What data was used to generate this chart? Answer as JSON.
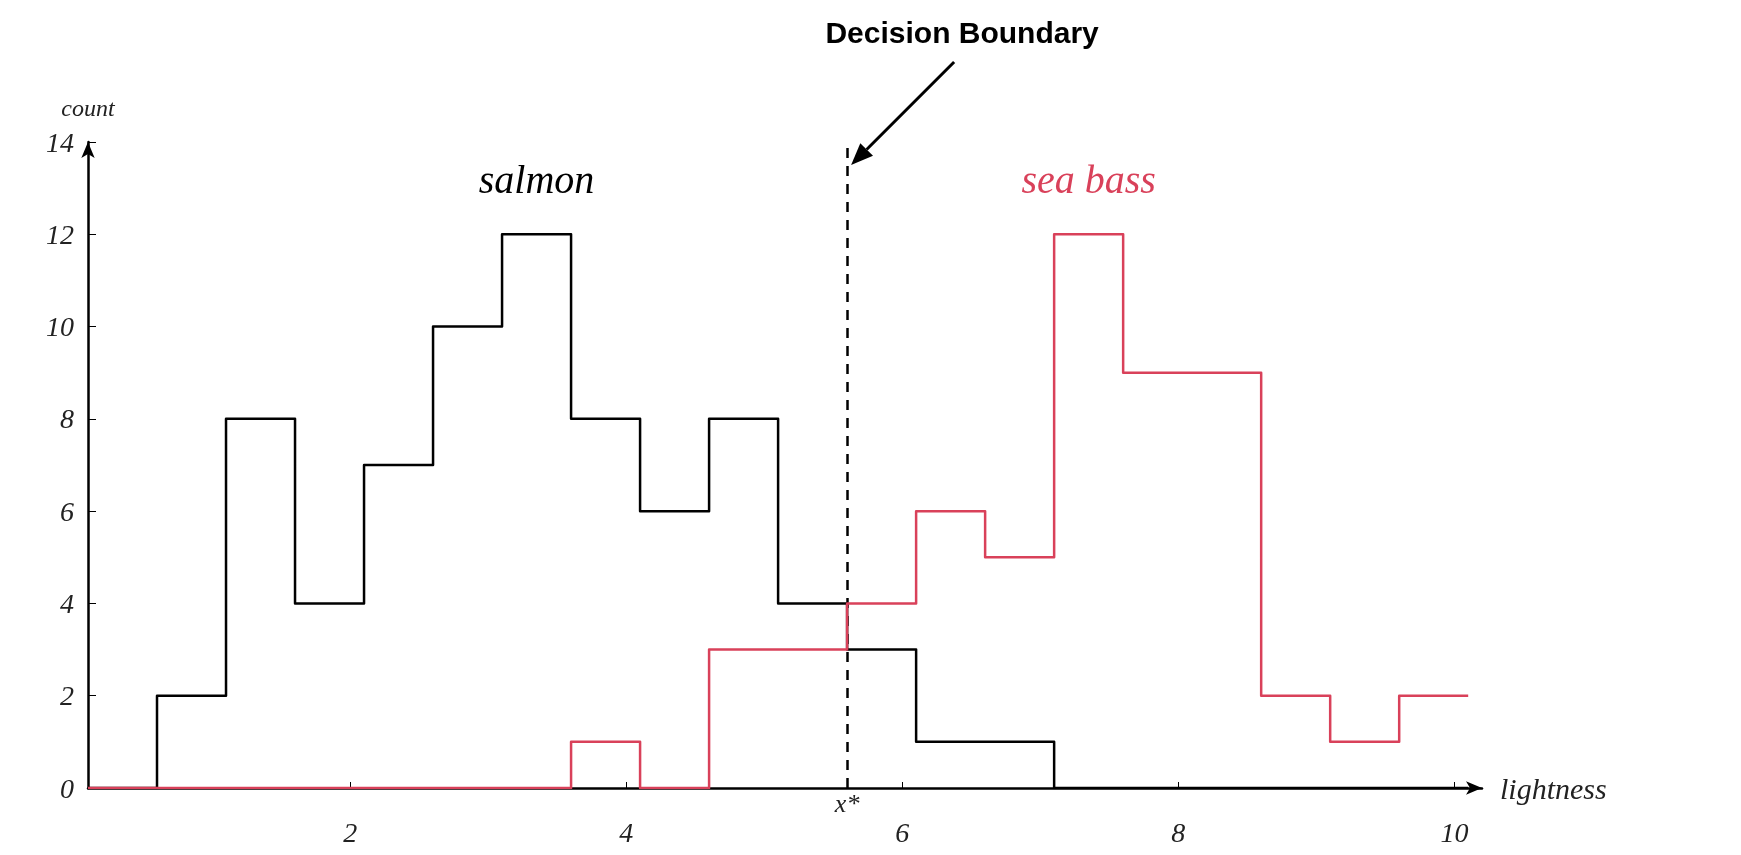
{
  "chart_data": {
    "type": "step",
    "xlabel": "lightness",
    "ylabel": "count",
    "x": [
      0.1,
      0.6,
      1.1,
      1.6,
      2.1,
      2.6,
      3.1,
      3.6,
      4.1,
      4.6,
      5.1,
      5.6,
      6.1,
      6.6,
      7.1,
      7.6,
      8.1,
      8.6,
      9.1,
      9.6,
      10.1
    ],
    "series": [
      {
        "name": "salmon",
        "color": "#000000",
        "values": [
          0,
          2,
          8,
          4,
          7,
          10,
          12,
          8,
          6,
          8,
          4,
          3,
          1,
          1,
          0,
          0,
          0,
          0,
          0,
          0,
          0
        ]
      },
      {
        "name": "sea bass",
        "color": "#d9415a",
        "values": [
          0,
          0,
          0,
          0,
          0,
          0,
          0,
          1,
          0,
          3,
          3,
          4,
          6,
          5,
          12,
          9,
          9,
          2,
          1,
          2,
          2
        ]
      }
    ],
    "xlim": [
      0.1,
      10.2
    ],
    "xticks": [
      2,
      4,
      6,
      8,
      10
    ],
    "ylim": [
      0,
      14
    ],
    "yticks": [
      0,
      2,
      4,
      6,
      8,
      10,
      12,
      14
    ],
    "grid": false,
    "marker": "none",
    "line_style": "solid",
    "ref_lines": [
      {
        "axis": "x",
        "value": 5.6,
        "label": "x*",
        "color": "#000000",
        "line_style": "dashed"
      }
    ],
    "annotations": [
      "Decision Boundary"
    ]
  }
}
